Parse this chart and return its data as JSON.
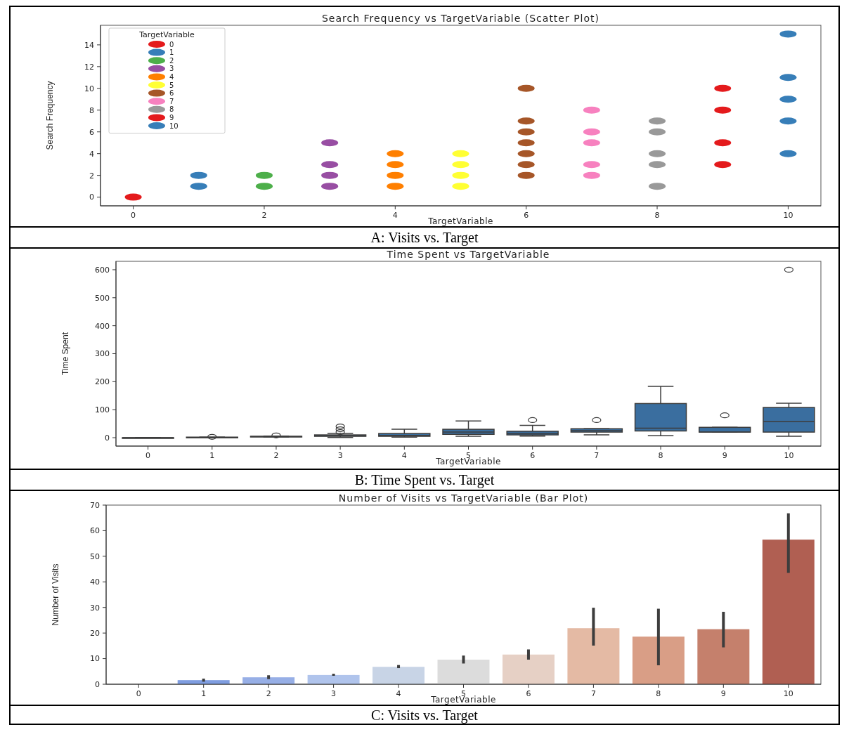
{
  "chart_data": [
    {
      "type": "scatter",
      "title": "Search Frequency vs TargetVariable (Scatter Plot)",
      "xlabel": "TargetVariable",
      "ylabel": "Search Frequency",
      "xlim": [
        -0.5,
        10.5
      ],
      "ylim": [
        -0.8,
        15.8
      ],
      "xticks": [
        0,
        2,
        4,
        6,
        8,
        10
      ],
      "yticks": [
        0,
        2,
        4,
        6,
        8,
        10,
        12,
        14
      ],
      "legend": "top left",
      "legend_title": "TargetVariable",
      "marker": "circle",
      "annotations": [
        "A: Visits vs. Target"
      ],
      "series": [
        {
          "name": "0",
          "color": "#e41a1c",
          "x": [
            0
          ],
          "values": [
            0
          ]
        },
        {
          "name": "1",
          "color": "#377eb8",
          "x": [
            1,
            1
          ],
          "values": [
            1,
            2
          ]
        },
        {
          "name": "2",
          "color": "#4daf4a",
          "x": [
            2,
            2
          ],
          "values": [
            1,
            2
          ]
        },
        {
          "name": "3",
          "color": "#984ea3",
          "x": [
            3,
            3,
            3,
            3
          ],
          "values": [
            1,
            2,
            3,
            5
          ]
        },
        {
          "name": "4",
          "color": "#ff7f00",
          "x": [
            4,
            4,
            4,
            4
          ],
          "values": [
            1,
            2,
            3,
            4
          ]
        },
        {
          "name": "5",
          "color": "#ffff33",
          "x": [
            5,
            5,
            5,
            5
          ],
          "values": [
            1,
            2,
            3,
            4
          ]
        },
        {
          "name": "6",
          "color": "#a65628",
          "x": [
            6,
            6,
            6,
            6,
            6,
            6,
            6
          ],
          "values": [
            2,
            3,
            4,
            5,
            6,
            7,
            10
          ]
        },
        {
          "name": "7",
          "color": "#f781bf",
          "x": [
            7,
            7,
            7,
            7,
            7
          ],
          "values": [
            2,
            3,
            5,
            6,
            8
          ]
        },
        {
          "name": "8",
          "color": "#999999",
          "x": [
            8,
            8,
            8,
            8,
            8
          ],
          "values": [
            1,
            3,
            4,
            6,
            7
          ]
        },
        {
          "name": "9",
          "color": "#e41a1c",
          "x": [
            9,
            9,
            9,
            9
          ],
          "values": [
            3,
            5,
            8,
            10
          ]
        },
        {
          "name": "10",
          "color": "#377eb8",
          "x": [
            10,
            10,
            10,
            10,
            10
          ],
          "values": [
            4,
            7,
            9,
            11,
            15
          ]
        }
      ]
    },
    {
      "type": "box",
      "title": "Time Spent vs TargetVariable",
      "xlabel": "TargetVariable",
      "ylabel": "Time Spent",
      "categories": [
        "0",
        "1",
        "2",
        "3",
        "4",
        "5",
        "6",
        "7",
        "8",
        "9",
        "10"
      ],
      "ylim": [
        -30,
        630
      ],
      "yticks": [
        0,
        100,
        200,
        300,
        400,
        500,
        600
      ],
      "color": "#3a6e9f",
      "annotations": [
        "B: Time Spent vs. Target"
      ],
      "boxes": [
        {
          "low": 0,
          "q1": 0,
          "median": 0,
          "q3": 0,
          "high": 0
        },
        {
          "low": 1,
          "q1": 1,
          "median": 1,
          "q3": 2,
          "high": 2,
          "outliers": [
            3
          ]
        },
        {
          "low": 2,
          "q1": 3,
          "median": 4,
          "q3": 5,
          "high": 6,
          "outliers": [
            8
          ]
        },
        {
          "low": 1,
          "q1": 5,
          "median": 7,
          "q3": 10,
          "high": 15,
          "outliers": [
            20,
            30,
            40
          ]
        },
        {
          "low": 2,
          "q1": 5,
          "median": 8,
          "q3": 15,
          "high": 30
        },
        {
          "low": 5,
          "q1": 12,
          "median": 20,
          "q3": 30,
          "high": 60
        },
        {
          "low": 6,
          "q1": 10,
          "median": 15,
          "q3": 23,
          "high": 44,
          "outliers": [
            63
          ]
        },
        {
          "low": 10,
          "q1": 20,
          "median": 25,
          "q3": 32,
          "high": 32,
          "outliers": [
            63
          ]
        },
        {
          "low": 7,
          "q1": 24,
          "median": 34,
          "q3": 122,
          "high": 183
        },
        {
          "low": 20,
          "q1": 20,
          "median": 20,
          "q3": 37,
          "high": 37,
          "outliers": [
            80
          ]
        },
        {
          "low": 5,
          "q1": 20,
          "median": 57,
          "q3": 108,
          "high": 123,
          "outliers": [
            600
          ]
        }
      ]
    },
    {
      "type": "bar",
      "title": "Number of Visits vs TargetVariable (Bar Plot)",
      "xlabel": "TargetVariable",
      "ylabel": "Number of Visits",
      "categories": [
        "0",
        "1",
        "2",
        "3",
        "4",
        "5",
        "6",
        "7",
        "8",
        "9",
        "10"
      ],
      "ylim": [
        0,
        70
      ],
      "yticks": [
        0,
        10,
        20,
        30,
        40,
        50,
        60,
        70
      ],
      "annotations": [
        "C: Visits vs. Target"
      ],
      "values": [
        0,
        1.6,
        2.7,
        3.6,
        6.8,
        9.6,
        11.6,
        21.9,
        18.6,
        21.5,
        56.5
      ],
      "colors": [
        "#6f8bd6",
        "#7f9de0",
        "#97afe6",
        "#b0c4ec",
        "#c8d4e6",
        "#dcdcdc",
        "#e6d0c5",
        "#e4baa4",
        "#d99e86",
        "#c5806c",
        "#b05f52"
      ],
      "errors": [
        null,
        [
          1,
          2.2
        ],
        [
          2,
          3.5
        ],
        [
          3.3,
          4.1
        ],
        [
          6.3,
          7.5
        ],
        [
          8.1,
          11.2
        ],
        [
          9.6,
          13.6
        ],
        [
          15.1,
          29.9
        ],
        [
          7.4,
          29.5
        ],
        [
          14.4,
          28.3
        ],
        [
          43.5,
          66.8
        ]
      ]
    }
  ]
}
